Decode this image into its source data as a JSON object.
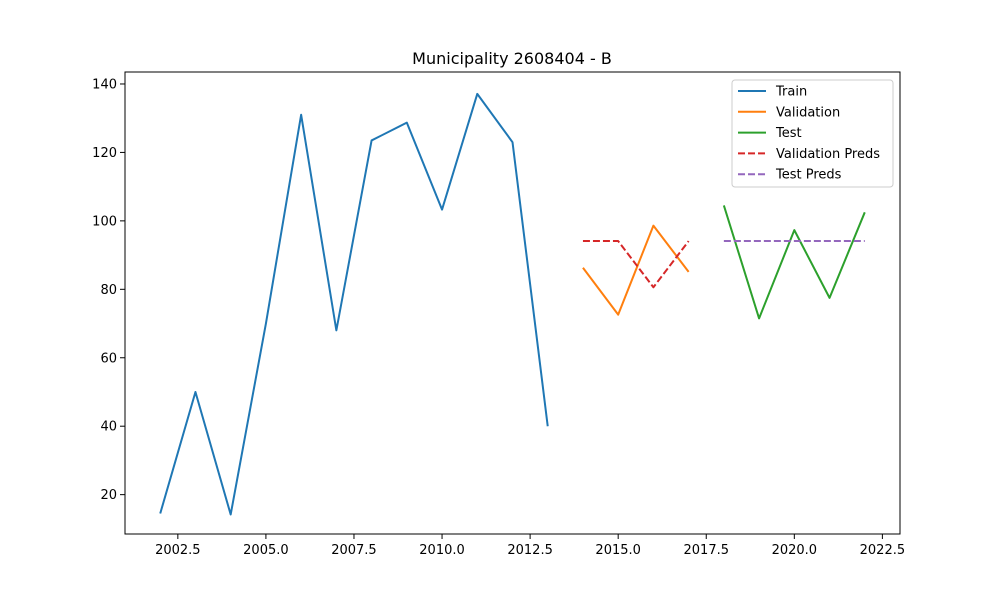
{
  "chart_data": {
    "type": "line",
    "title": "Municipality 2608404 - B",
    "xlabel": "",
    "ylabel": "",
    "xlim": [
      2001.0,
      2023.0
    ],
    "ylim": [
      8.5,
      143.5
    ],
    "x_ticks": [
      2002.5,
      2005.0,
      2007.5,
      2010.0,
      2012.5,
      2015.0,
      2017.5,
      2020.0,
      2022.5
    ],
    "x_tick_labels": [
      "2002.5",
      "2005.0",
      "2007.5",
      "2010.0",
      "2012.5",
      "2015.0",
      "2017.5",
      "2020.0",
      "2022.5"
    ],
    "y_ticks": [
      20,
      40,
      60,
      80,
      100,
      120,
      140
    ],
    "y_tick_labels": [
      "20",
      "40",
      "60",
      "80",
      "100",
      "120",
      "140"
    ],
    "grid": false,
    "legend_position": "top-right",
    "series": [
      {
        "name": "Train",
        "color": "#1f77b4",
        "dash": "solid",
        "x": [
          2002,
          2003,
          2004,
          2005,
          2006,
          2007,
          2008,
          2009,
          2010,
          2011,
          2012,
          2013
        ],
        "y": [
          14.5,
          50,
          14.2,
          70,
          131,
          68,
          123.5,
          128.7,
          103.3,
          137.1,
          123,
          40
        ]
      },
      {
        "name": "Validation",
        "color": "#ff7f0e",
        "dash": "solid",
        "x": [
          2014,
          2015,
          2016,
          2017
        ],
        "y": [
          86.3,
          72.6,
          98.6,
          85.1
        ]
      },
      {
        "name": "Test",
        "color": "#2ca02c",
        "dash": "solid",
        "x": [
          2018,
          2019,
          2020,
          2021,
          2022
        ],
        "y": [
          104.5,
          71.5,
          97.3,
          77.5,
          102.5
        ]
      },
      {
        "name": "Validation Preds",
        "color": "#d62728",
        "dash": "dashed",
        "x": [
          2014,
          2015,
          2016,
          2017
        ],
        "y": [
          94.1,
          94.1,
          80.6,
          94.1
        ]
      },
      {
        "name": "Test Preds",
        "color": "#9467bd",
        "dash": "dashed",
        "x": [
          2018,
          2019,
          2020,
          2021,
          2022
        ],
        "y": [
          94.1,
          94.1,
          94.1,
          94.1,
          94.1
        ]
      }
    ]
  }
}
